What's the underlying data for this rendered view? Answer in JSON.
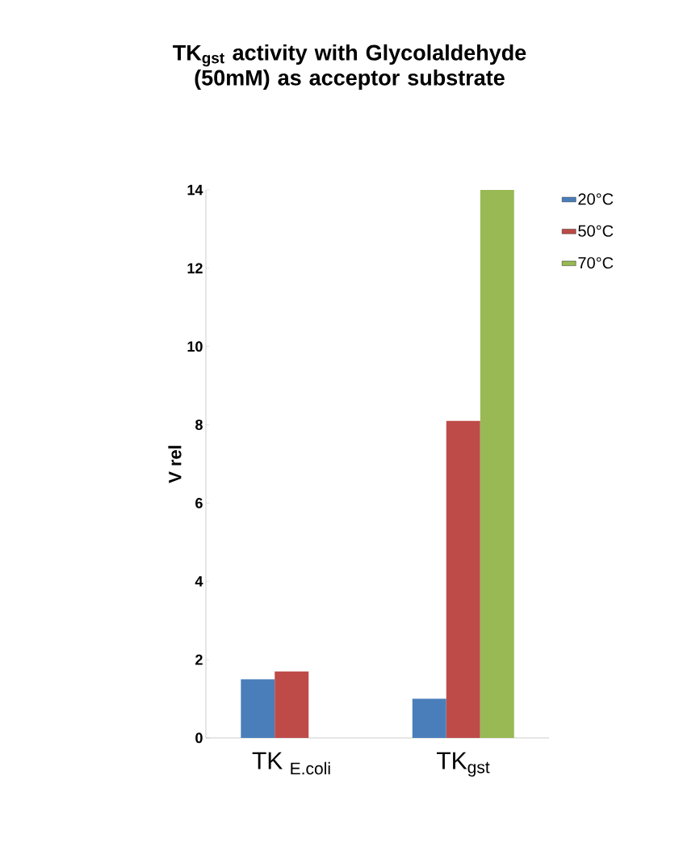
{
  "chart_data": {
    "type": "bar",
    "title": "TK$_{gst}$ activity with Glycolaldehyde (50mM) as acceptor substrate",
    "ylabel": "V rel",
    "categories": [
      "TK $_{E.coli}$",
      "TK$_{gst}$"
    ],
    "series": [
      {
        "name": "20°C",
        "color": "#4a7ebb",
        "values": [
          1.5,
          1.0
        ]
      },
      {
        "name": "50°C",
        "color": "#be4b48",
        "values": [
          1.7,
          8.1
        ]
      },
      {
        "name": "70°C",
        "color": "#98b954",
        "values": [
          null,
          14
        ]
      }
    ],
    "ylim": [
      0,
      14
    ],
    "yticks": [
      0,
      2,
      4,
      6,
      8,
      10,
      12,
      14
    ],
    "legend": "top right",
    "grid": false
  }
}
